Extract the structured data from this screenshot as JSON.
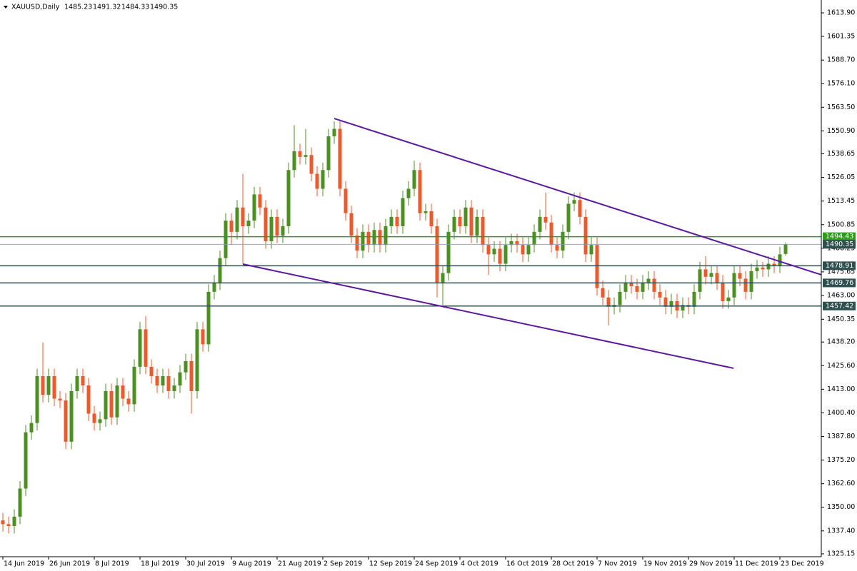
{
  "chart_data": {
    "type": "candlestick",
    "title": "XAUUSD,Daily",
    "categories": [
      "14 Jun 2019",
      null,
      null,
      null,
      null,
      null,
      null,
      null,
      "26 Jun 2019",
      null,
      null,
      null,
      null,
      null,
      null,
      null,
      "8 Jul 2019",
      null,
      null,
      null,
      null,
      null,
      null,
      null,
      "18 Jul 2019",
      null,
      null,
      null,
      null,
      null,
      null,
      null,
      "30 Jul 2019",
      null,
      null,
      null,
      null,
      null,
      null,
      null,
      "9 Aug 2019",
      null,
      null,
      null,
      null,
      null,
      null,
      null,
      "21 Aug 2019",
      null,
      null,
      null,
      null,
      null,
      null,
      null,
      "2 Sep 2019",
      null,
      null,
      null,
      null,
      null,
      null,
      null,
      "12 Sep 2019",
      null,
      null,
      null,
      null,
      null,
      null,
      null,
      "24 Sep 2019",
      null,
      null,
      null,
      null,
      null,
      null,
      null,
      "4 Oct 2019",
      null,
      null,
      null,
      null,
      null,
      null,
      null,
      "16 Oct 2019",
      null,
      null,
      null,
      null,
      null,
      null,
      null,
      "28 Oct 2019",
      null,
      null,
      null,
      null,
      null,
      null,
      null,
      "7 Nov 2019",
      null,
      null,
      null,
      null,
      null,
      null,
      null,
      "19 Nov 2019",
      null,
      null,
      null,
      null,
      null,
      null,
      null,
      "29 Nov 2019",
      null,
      null,
      null,
      null,
      null,
      null,
      null,
      "11 Dec 2019",
      null,
      null,
      null,
      null,
      null,
      null,
      null,
      "23 Dec 2019",
      null
    ],
    "open": [
      1343,
      1341,
      1340,
      1345,
      1360,
      1390,
      1395,
      1420,
      1410,
      1420,
      1408,
      1407,
      1385,
      1412,
      1420,
      1415,
      1400,
      1395,
      1397,
      1412,
      1398,
      1415,
      1408,
      1405,
      1425,
      1445,
      1425,
      1420,
      1415,
      1420,
      1412,
      1415,
      1422,
      1428,
      1412,
      1445,
      1437,
      1465,
      1470,
      1483,
      1503,
      1497,
      1510,
      1500,
      1503,
      1517,
      1510,
      1492,
      1505,
      1495,
      1500,
      1530,
      1540,
      1537,
      1538,
      1528,
      1520,
      1530,
      1548,
      1552,
      1520,
      1507,
      1495,
      1487,
      1497,
      1490,
      1498,
      1490,
      1500,
      1505,
      1500,
      1515,
      1520,
      1530,
      1507,
      1508,
      1500,
      1470,
      1475,
      1497,
      1505,
      1500,
      1510,
      1495,
      1505,
      1490,
      1485,
      1488,
      1480,
      1490,
      1492,
      1490,
      1485,
      1490,
      1497,
      1505,
      1502,
      1490,
      1487,
      1497,
      1512,
      1514,
      1505,
      1485,
      1490,
      1467,
      1462,
      1457,
      1458,
      1465,
      1470,
      1468,
      1465,
      1470,
      1472,
      1465,
      1462,
      1457,
      1460,
      1455,
      1458,
      1457,
      1465,
      1477,
      1473,
      1475,
      1470,
      1460,
      1462,
      1475,
      1472,
      1465,
      1476,
      1478,
      1477,
      1480,
      1479,
      1485.23
    ],
    "high": [
      1347,
      1345,
      1349,
      1364,
      1394,
      1399,
      1424,
      1438,
      1424,
      1424,
      1412,
      1411,
      1416,
      1424,
      1424,
      1419,
      1404,
      1401,
      1416,
      1416,
      1419,
      1419,
      1412,
      1429,
      1449,
      1452,
      1429,
      1424,
      1424,
      1424,
      1419,
      1426,
      1432,
      1432,
      1449,
      1449,
      1469,
      1474,
      1487,
      1507,
      1507,
      1514,
      1528,
      1507,
      1521,
      1521,
      1514,
      1509,
      1509,
      1504,
      1534,
      1554,
      1544,
      1552,
      1542,
      1532,
      1534,
      1552,
      1556,
      1556,
      1524,
      1511,
      1499,
      1501,
      1501,
      1502,
      1502,
      1504,
      1509,
      1509,
      1519,
      1524,
      1535,
      1534,
      1512,
      1512,
      1504,
      1479,
      1501,
      1509,
      1509,
      1514,
      1514,
      1509,
      1509,
      1494,
      1492,
      1492,
      1494,
      1496,
      1496,
      1494,
      1494,
      1501,
      1509,
      1518,
      1506,
      1494,
      1501,
      1516,
      1518,
      1518,
      1509,
      1494,
      1494,
      1471,
      1466,
      1462,
      1469,
      1474,
      1474,
      1472,
      1474,
      1476,
      1476,
      1469,
      1466,
      1464,
      1464,
      1462,
      1462,
      1469,
      1481,
      1484,
      1479,
      1479,
      1474,
      1466,
      1479,
      1479,
      1476,
      1480,
      1482,
      1481,
      1484,
      1484,
      1489,
      1491.32
    ],
    "low": [
      1337,
      1336,
      1336,
      1341,
      1356,
      1386,
      1391,
      1406,
      1406,
      1404,
      1403,
      1381,
      1381,
      1408,
      1411,
      1396,
      1391,
      1391,
      1393,
      1394,
      1394,
      1404,
      1401,
      1401,
      1421,
      1421,
      1416,
      1411,
      1411,
      1408,
      1408,
      1411,
      1418,
      1400,
      1408,
      1433,
      1433,
      1461,
      1466,
      1479,
      1490,
      1493,
      1480,
      1496,
      1499,
      1506,
      1488,
      1488,
      1491,
      1491,
      1496,
      1526,
      1533,
      1533,
      1524,
      1516,
      1516,
      1526,
      1544,
      1516,
      1503,
      1491,
      1483,
      1483,
      1486,
      1486,
      1486,
      1486,
      1496,
      1496,
      1496,
      1511,
      1516,
      1503,
      1503,
      1496,
      1462,
      1458,
      1471,
      1493,
      1496,
      1496,
      1491,
      1491,
      1486,
      1474,
      1481,
      1476,
      1476,
      1486,
      1486,
      1481,
      1481,
      1486,
      1493,
      1498,
      1486,
      1483,
      1483,
      1493,
      1508,
      1501,
      1481,
      1481,
      1463,
      1458,
      1447,
      1453,
      1454,
      1461,
      1464,
      1461,
      1461,
      1466,
      1461,
      1458,
      1453,
      1453,
      1451,
      1451,
      1453,
      1453,
      1461,
      1469,
      1469,
      1466,
      1456,
      1456,
      1458,
      1468,
      1461,
      1461,
      1472,
      1473,
      1473,
      1475,
      1475,
      1484.33
    ],
    "close": [
      1341,
      1340,
      1345,
      1360,
      1390,
      1395,
      1420,
      1410,
      1420,
      1408,
      1407,
      1385,
      1412,
      1420,
      1415,
      1400,
      1395,
      1397,
      1412,
      1398,
      1415,
      1408,
      1405,
      1425,
      1445,
      1425,
      1420,
      1415,
      1420,
      1412,
      1415,
      1422,
      1428,
      1412,
      1445,
      1437,
      1465,
      1470,
      1483,
      1503,
      1497,
      1510,
      1500,
      1503,
      1517,
      1510,
      1492,
      1505,
      1495,
      1500,
      1530,
      1540,
      1537,
      1538,
      1528,
      1520,
      1530,
      1548,
      1552,
      1520,
      1507,
      1495,
      1487,
      1497,
      1490,
      1498,
      1490,
      1500,
      1505,
      1500,
      1515,
      1520,
      1530,
      1507,
      1508,
      1500,
      1470,
      1475,
      1497,
      1505,
      1500,
      1510,
      1495,
      1505,
      1490,
      1485,
      1488,
      1480,
      1490,
      1492,
      1490,
      1485,
      1490,
      1497,
      1505,
      1502,
      1490,
      1487,
      1497,
      1512,
      1514,
      1505,
      1485,
      1490,
      1467,
      1462,
      1457,
      1458,
      1465,
      1470,
      1468,
      1465,
      1470,
      1472,
      1465,
      1462,
      1457,
      1460,
      1455,
      1458,
      1457,
      1465,
      1477,
      1473,
      1475,
      1470,
      1460,
      1462,
      1475,
      1472,
      1465,
      1476,
      1478,
      1477,
      1480,
      1479,
      1485,
      1490.35
    ],
    "up_color": "#4e8f24",
    "down_color": "#ec5a2c",
    "xlim": [
      -0.5,
      143.25
    ],
    "ylim": [
      1323.61,
      1620.76
    ],
    "yticks": [
      {
        "value": 1613.9,
        "label": "1613.90"
      },
      1601.35,
      {
        "value": 1588.7,
        "label": "1588.70"
      },
      {
        "value": 1576.1,
        "label": "1576.10"
      },
      {
        "value": 1563.5,
        "label": "1563.50"
      },
      {
        "value": 1550.9,
        "label": "1550.90"
      },
      1538.65,
      1526.05,
      1513.45,
      1500.85,
      1488.25,
      1475.65,
      {
        "value": 1463.0,
        "label": "1463.00"
      },
      1450.35,
      {
        "value": 1438.2,
        "label": "1438.20"
      },
      {
        "value": 1425.6,
        "label": "1425.60"
      },
      {
        "value": 1413.0,
        "label": "1413.00"
      },
      {
        "value": 1400.4,
        "label": "1400.40"
      },
      {
        "value": 1387.8,
        "label": "1387.80"
      },
      {
        "value": 1375.2,
        "label": "1375.20"
      },
      {
        "value": 1362.6,
        "label": "1362.60"
      },
      {
        "value": 1350.0,
        "label": "1350.00"
      },
      {
        "value": 1337.4,
        "label": "1337.40"
      },
      1325.15
    ],
    "hlines": [
      {
        "value": 1494.43,
        "color": "#2f9a1c"
      },
      {
        "value": 1478.91,
        "color": "#2f4f4f"
      },
      {
        "value": 1469.76,
        "color": "#2f4f4f"
      },
      {
        "value": 1457.42,
        "color": "#2f4f4f"
      }
    ],
    "price_line_color": "#8c9ba8",
    "trendlines": [
      {
        "x": [
          58,
          143.25
        ],
        "y": [
          1557.5,
          1474.1
        ],
        "color": "#5b1a9c"
      },
      {
        "x": [
          42,
          127.9
        ],
        "y": [
          1479.8,
          1424.2
        ],
        "color": "#5b1a9c"
      }
    ]
  }
}
